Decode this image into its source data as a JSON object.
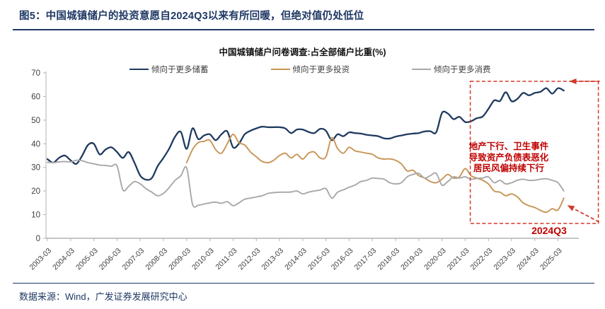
{
  "figure": {
    "title": "图5：中国城镇储户的投资意愿自2024Q3以来有所回暖，但绝对值仍处低位"
  },
  "footer": {
    "source": "数据来源：Wind，广发证券发展研究中心"
  },
  "colors": {
    "title_navy": "#1f3864",
    "axis_gray": "#b3b3b3",
    "tick_text": "#404040"
  },
  "chart_data": {
    "type": "line",
    "title": "中国城镇储户问卷调查:占全部储户比重(%)",
    "xlabel": "",
    "ylabel": "",
    "ylim": [
      0,
      70
    ],
    "y_ticks": [
      0,
      10,
      20,
      30,
      40,
      50,
      60,
      70
    ],
    "grid": false,
    "legend_position": "top",
    "x_tick_labels": [
      "2003-03",
      "2004-03",
      "2005-03",
      "2006-03",
      "2007-03",
      "2008-03",
      "2009-03",
      "2010-03",
      "2011-03",
      "2012-03",
      "2013-03",
      "2014-03",
      "2015-03",
      "2016-03",
      "2017-03",
      "2018-03",
      "2019-03",
      "2020-03",
      "2021-03",
      "2022-03",
      "2023-03",
      "2024-03",
      "2025-03"
    ],
    "categories": [
      "2003-03",
      "2003-06",
      "2003-09",
      "2003-12",
      "2004-03",
      "2004-06",
      "2004-09",
      "2004-12",
      "2005-03",
      "2005-06",
      "2005-09",
      "2005-12",
      "2006-03",
      "2006-06",
      "2006-09",
      "2006-12",
      "2007-03",
      "2007-06",
      "2007-09",
      "2007-12",
      "2008-03",
      "2008-06",
      "2008-09",
      "2008-12",
      "2009-03",
      "2009-06",
      "2009-09",
      "2009-12",
      "2010-03",
      "2010-06",
      "2010-09",
      "2010-12",
      "2011-03",
      "2011-06",
      "2011-09",
      "2011-12",
      "2012-03",
      "2012-06",
      "2012-09",
      "2012-12",
      "2013-03",
      "2013-06",
      "2013-09",
      "2013-12",
      "2014-03",
      "2014-06",
      "2014-09",
      "2014-12",
      "2015-03",
      "2015-06",
      "2015-09",
      "2015-12",
      "2016-03",
      "2016-06",
      "2016-09",
      "2016-12",
      "2017-03",
      "2017-06",
      "2017-09",
      "2017-12",
      "2018-03",
      "2018-06",
      "2018-09",
      "2018-12",
      "2019-03",
      "2019-06",
      "2019-09",
      "2019-12",
      "2020-03",
      "2020-06",
      "2020-09",
      "2020-12",
      "2021-03",
      "2021-06",
      "2021-09",
      "2021-12",
      "2022-03",
      "2022-06",
      "2022-09",
      "2022-12",
      "2023-03",
      "2023-06",
      "2023-09",
      "2023-12",
      "2024-03",
      "2024-06",
      "2024-09",
      "2024-12",
      "2025-03",
      "2025-06"
    ],
    "series": [
      {
        "name": "倾向于更多储蓄",
        "color": "#1f3a5f",
        "start": "2003-03",
        "values": [
          33.5,
          32.0,
          34.0,
          35.0,
          33.0,
          31.5,
          35.0,
          39.5,
          40.0,
          35.5,
          37.5,
          38.5,
          36.5,
          34.0,
          36.5,
          32.0,
          26.5,
          24.8,
          25.5,
          30.5,
          34.0,
          38.0,
          43.0,
          45.0,
          37.8,
          46.5,
          42.0,
          43.5,
          44.0,
          41.5,
          44.0,
          45.2,
          38.5,
          40.0,
          44.0,
          45.5,
          46.5,
          47.2,
          47.0,
          47.0,
          47.0,
          46.5,
          44.5,
          46.0,
          46.0,
          45.0,
          44.5,
          46.3,
          45.5,
          41.5,
          44.0,
          43.2,
          44.8,
          44.5,
          44.3,
          43.8,
          43.5,
          43.2,
          42.3,
          42.2,
          43.0,
          43.5,
          44.0,
          44.3,
          44.5,
          45.2,
          45.3,
          44.8,
          53.0,
          52.8,
          50.4,
          51.4,
          49.2,
          49.5,
          50.8,
          51.5,
          54.7,
          58.3,
          58.1,
          61.8,
          58.0,
          59.0,
          61.5,
          60.5,
          61.5,
          62.0,
          63.5,
          61.2,
          63.5,
          62.5
        ]
      },
      {
        "name": "倾向于更多投资",
        "color": "#c79455",
        "start": "2009-03",
        "values": [
          32.0,
          37.5,
          40.5,
          41.0,
          41.5,
          37.5,
          36.0,
          40.0,
          44.0,
          40.5,
          39.5,
          36.5,
          34.5,
          32.5,
          32.0,
          33.0,
          35.0,
          36.0,
          34.0,
          35.5,
          33.5,
          36.0,
          36.5,
          34.0,
          34.5,
          42.5,
          38.0,
          36.0,
          38.5,
          37.0,
          36.5,
          36.0,
          35.5,
          34.0,
          33.5,
          33.6,
          33.0,
          31.5,
          28.5,
          28.8,
          26.5,
          25.5,
          24.0,
          23.5,
          25.0,
          27.0,
          25.5,
          26.0,
          29.5,
          26.5,
          25.5,
          24.6,
          23.0,
          20.0,
          19.5,
          18.0,
          18.8,
          17.5,
          15.0,
          13.8,
          13.0,
          11.8,
          11.0,
          12.5,
          12.0,
          17.0
        ]
      },
      {
        "name": "倾向于更多消费",
        "color": "#a8a8a8",
        "start": "2003-03",
        "values": [
          32.2,
          32.0,
          32.3,
          32.5,
          32.3,
          33.0,
          32.8,
          32.0,
          31.5,
          31.0,
          30.8,
          30.5,
          30.6,
          20.5,
          22.0,
          24.0,
          23.0,
          21.0,
          19.5,
          18.0,
          19.0,
          21.5,
          24.5,
          26.5,
          29.8,
          14.5,
          14.0,
          14.5,
          15.0,
          15.3,
          14.8,
          15.5,
          13.8,
          15.0,
          16.5,
          17.0,
          17.5,
          18.0,
          19.0,
          19.3,
          19.5,
          19.5,
          19.6,
          20.0,
          18.8,
          19.5,
          20.0,
          20.4,
          21.0,
          17.0,
          19.5,
          20.5,
          21.6,
          22.5,
          24.0,
          24.5,
          25.5,
          25.3,
          25.0,
          23.5,
          23.0,
          23.5,
          26.0,
          27.0,
          27.5,
          25.5,
          26.5,
          27.5,
          22.5,
          24.0,
          26.0,
          25.5,
          26.0,
          25.0,
          25.3,
          25.5,
          26.0,
          23.5,
          24.5,
          23.0,
          23.5,
          24.6,
          25.0,
          24.5,
          24.6,
          25.0,
          25.2,
          24.5,
          23.5,
          20.0
        ]
      }
    ],
    "annotations": {
      "callout_lines": [
        "地产下行、卫生事件",
        "导致资产负债表恶化",
        "居民风偏持续下行"
      ],
      "callout_color": "#c00000",
      "box_color": "#d23a2a",
      "box_x_range": [
        "2021-06",
        "2025-03"
      ],
      "quarter_label": "2024Q3"
    }
  }
}
